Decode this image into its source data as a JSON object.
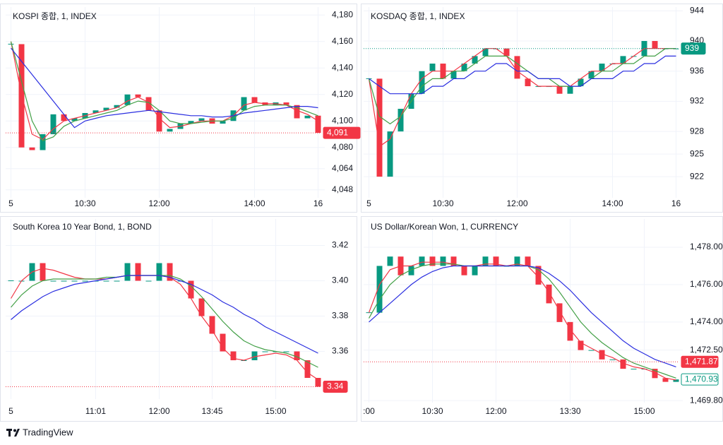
{
  "chart_data": [
    {
      "type": "candlestick",
      "title": "KOSPI 종합, 1, INDEX",
      "categories": [
        "5",
        null,
        null,
        null,
        null,
        null,
        null,
        "10:30",
        null,
        null,
        null,
        null,
        null,
        null,
        "12:00",
        null,
        null,
        null,
        null,
        null,
        null,
        null,
        null,
        "14:00",
        null,
        null,
        null,
        null,
        null,
        "16"
      ],
      "values": [
        4158,
        4080,
        4078,
        4090,
        4105,
        4100,
        4102,
        4106,
        4108,
        4110,
        4112,
        4120,
        4118,
        4108,
        4092,
        4094,
        4098,
        4100,
        4102,
        4098,
        4100,
        4108,
        4118,
        4114,
        4112,
        4114,
        4112,
        4102,
        4104,
        4091
      ],
      "up_color": "#089981",
      "down_color": "#f23645",
      "series": [
        {
          "color": "#f23645",
          "values": [
            4160,
            4120,
            4090,
            4086,
            4094,
            4100,
            4102,
            4104,
            4106,
            4108,
            4110,
            4115,
            4118,
            4114,
            4102,
            4095,
            4096,
            4098,
            4100,
            4100,
            4100,
            4104,
            4112,
            4114,
            4113,
            4113,
            4112,
            4108,
            4105,
            4100
          ]
        },
        {
          "color": "#43a047",
          "values": [
            4160,
            4130,
            4100,
            4085,
            4088,
            4096,
            4100,
            4102,
            4104,
            4106,
            4108,
            4112,
            4115,
            4114,
            4108,
            4100,
            4098,
            4098,
            4099,
            4100,
            4100,
            4102,
            4108,
            4111,
            4112,
            4112,
            4112,
            4110,
            4107,
            4104
          ]
        },
        {
          "color": "#2a2ee0",
          "values": [
            4155,
            4145,
            4135,
            4125,
            4115,
            4105,
            4095,
            4100,
            4102,
            4104,
            4105,
            4106,
            4107,
            4108,
            4107,
            4106,
            4105,
            4104,
            4104,
            4103,
            4103,
            4104,
            4106,
            4107,
            4108,
            4109,
            4110,
            4111,
            4111,
            4110
          ]
        }
      ],
      "ylim": [
        4042,
        4186
      ],
      "yticks": [
        {
          "value": 4048,
          "label": "4,048"
        },
        {
          "value": 4064,
          "label": "4,064"
        },
        {
          "value": 4080,
          "label": "4,080"
        },
        {
          "value": 4100,
          "label": "4,100"
        },
        {
          "value": 4120,
          "label": "4,120"
        },
        {
          "value": 4140,
          "label": "4,140"
        },
        {
          "value": 4160,
          "label": "4,160"
        },
        {
          "value": 4180,
          "label": "4,180"
        }
      ],
      "price_labels": [
        {
          "value": 4091,
          "label": "4,091",
          "color": "#f23645",
          "style": "filled"
        }
      ],
      "grid": true
    },
    {
      "type": "candlestick",
      "title": "KOSDAQ 종합, 1, INDEX",
      "categories": [
        "5",
        null,
        null,
        null,
        null,
        null,
        null,
        "10:30",
        null,
        null,
        null,
        null,
        null,
        null,
        "12:00",
        null,
        null,
        null,
        null,
        null,
        null,
        null,
        null,
        "14:00",
        null,
        null,
        null,
        null,
        null,
        "16"
      ],
      "values": [
        935,
        922,
        928,
        931,
        933,
        936,
        937,
        935,
        936,
        937,
        938,
        939,
        939,
        938,
        935,
        934,
        934,
        934,
        933,
        934,
        935,
        936,
        937,
        937,
        938,
        938,
        940,
        939,
        939,
        939
      ],
      "up_color": "#089981",
      "down_color": "#f23645",
      "series": [
        {
          "color": "#f23645",
          "values": [
            935,
            926,
            927,
            930,
            933,
            935,
            936,
            936,
            936,
            937,
            938,
            939,
            939,
            938,
            936,
            935,
            934,
            934,
            934,
            934,
            935,
            936,
            936,
            937,
            937,
            938,
            939,
            939,
            939,
            939
          ]
        },
        {
          "color": "#43a047",
          "values": [
            935,
            930,
            929,
            930,
            932,
            934,
            935,
            935,
            936,
            936,
            937,
            938,
            938,
            938,
            937,
            936,
            935,
            935,
            934,
            934,
            934,
            935,
            936,
            936,
            937,
            937,
            938,
            938,
            939,
            939
          ]
        },
        {
          "color": "#2a2ee0",
          "values": [
            935,
            934,
            933,
            933,
            933,
            933,
            934,
            934,
            935,
            935,
            936,
            936,
            937,
            937,
            936,
            936,
            935,
            935,
            935,
            934,
            934,
            935,
            935,
            935,
            936,
            936,
            937,
            937,
            938,
            938
          ]
        }
      ],
      "ylim": [
        919.2,
        944.5
      ],
      "yticks": [
        922,
        925,
        928,
        932,
        936,
        940,
        944
      ],
      "price_labels": [
        {
          "value": 939,
          "color": "#089981",
          "style": "filled"
        }
      ],
      "grid": true
    },
    {
      "type": "candlestick",
      "title": "South Korea 10 Year Bond, 1, BOND",
      "categories": [
        "5",
        null,
        null,
        null,
        null,
        null,
        null,
        null,
        "11:01",
        null,
        null,
        null,
        null,
        null,
        "12:00",
        null,
        null,
        null,
        null,
        "13:45",
        null,
        null,
        null,
        null,
        null,
        "15:00",
        null,
        null,
        null,
        null
      ],
      "values": [
        3.4,
        3.4,
        3.41,
        3.4,
        3.4,
        3.4,
        3.4,
        3.4,
        3.4,
        3.4,
        3.4,
        3.41,
        3.4,
        3.4,
        3.41,
        3.4,
        3.4,
        3.39,
        3.38,
        3.37,
        3.36,
        3.355,
        3.355,
        3.36,
        3.36,
        3.36,
        3.36,
        3.355,
        3.345,
        3.34
      ],
      "up_color": "#089981",
      "down_color": "#f23645",
      "series": [
        {
          "color": "#f23645",
          "values": [
            3.39,
            3.4,
            3.405,
            3.407,
            3.406,
            3.404,
            3.402,
            3.401,
            3.401,
            3.401,
            3.402,
            3.403,
            3.403,
            3.403,
            3.403,
            3.402,
            3.398,
            3.39,
            3.38,
            3.372,
            3.362,
            3.356,
            3.355,
            3.357,
            3.358,
            3.359,
            3.358,
            3.355,
            3.348,
            3.344
          ]
        },
        {
          "color": "#43a047",
          "values": [
            3.385,
            3.392,
            3.397,
            3.4,
            3.401,
            3.401,
            3.401,
            3.401,
            3.401,
            3.402,
            3.402,
            3.403,
            3.403,
            3.403,
            3.403,
            3.403,
            3.401,
            3.397,
            3.391,
            3.384,
            3.377,
            3.371,
            3.366,
            3.363,
            3.361,
            3.36,
            3.359,
            3.357,
            3.354,
            3.351
          ]
        },
        {
          "color": "#2a2ee0",
          "values": [
            3.378,
            3.383,
            3.387,
            3.391,
            3.394,
            3.396,
            3.398,
            3.399,
            3.4,
            3.401,
            3.402,
            3.403,
            3.403,
            3.403,
            3.403,
            3.402,
            3.4,
            3.398,
            3.395,
            3.392,
            3.388,
            3.385,
            3.381,
            3.378,
            3.374,
            3.371,
            3.368,
            3.365,
            3.362,
            3.359
          ]
        }
      ],
      "ylim": [
        3.333,
        3.435
      ],
      "yticks": [
        3.36,
        3.38,
        {
          "value": 3.4,
          "label": "3.40"
        },
        3.42
      ],
      "price_labels": [
        {
          "value": 3.34,
          "color": "#f23645",
          "style": "filled"
        }
      ],
      "grid": true
    },
    {
      "type": "candlestick",
      "title": "US Dollar/Korean Won, 1, CURRENCY",
      "categories": [
        ":00",
        null,
        null,
        null,
        null,
        null,
        "10:30",
        null,
        null,
        null,
        null,
        null,
        "12:00",
        null,
        null,
        null,
        null,
        null,
        null,
        "13:30",
        null,
        null,
        null,
        null,
        null,
        null,
        "15:00",
        null,
        null,
        null
      ],
      "values": [
        1474.5,
        1477,
        1477.5,
        1476.5,
        1477,
        1477.5,
        1477,
        1477.5,
        1477,
        1476.5,
        1477,
        1477.5,
        1477,
        1477,
        1477.5,
        1477,
        1476,
        1475,
        1474,
        1473,
        1472.5,
        1472.5,
        1472,
        1472,
        1471.5,
        1471.5,
        1471.5,
        1471,
        1470.8,
        1470.93
      ],
      "up_color": "#089981",
      "down_color": "#f23645",
      "series": [
        {
          "color": "#f23645",
          "values": [
            1474.5,
            1476,
            1476.8,
            1477,
            1477,
            1477.2,
            1477.2,
            1477.2,
            1477.1,
            1477,
            1477,
            1477.1,
            1477.1,
            1477,
            1477.1,
            1477,
            1476.4,
            1475.6,
            1474.6,
            1473.6,
            1472.9,
            1472.6,
            1472.3,
            1472.1,
            1471.8,
            1471.6,
            1471.5,
            1471.3,
            1471,
            1470.9
          ]
        },
        {
          "color": "#43a047",
          "values": [
            1474.2,
            1475.2,
            1476,
            1476.5,
            1476.8,
            1477,
            1477.1,
            1477.1,
            1477.1,
            1477,
            1477,
            1477,
            1477,
            1477,
            1477,
            1477,
            1476.8,
            1476.3,
            1475.6,
            1474.8,
            1474,
            1473.4,
            1472.9,
            1472.5,
            1472.1,
            1471.8,
            1471.6,
            1471.4,
            1471.2,
            1471
          ]
        },
        {
          "color": "#2a2ee0",
          "values": [
            1474,
            1474.5,
            1475,
            1475.5,
            1476,
            1476.4,
            1476.7,
            1476.9,
            1477,
            1477,
            1477,
            1477,
            1477,
            1477,
            1477,
            1477,
            1476.9,
            1476.6,
            1476.2,
            1475.7,
            1475.1,
            1474.5,
            1474,
            1473.5,
            1473,
            1472.6,
            1472.3,
            1472,
            1471.8,
            1471.6
          ]
        }
      ],
      "ylim": [
        1469.69,
        1479.51
      ],
      "yticks": [
        {
          "value": 1469.8,
          "label": "1,469.80"
        },
        {
          "value": 1472.5,
          "label": "1,472.50"
        },
        {
          "value": 1474,
          "label": "1,474.00"
        },
        {
          "value": 1476,
          "label": "1,476.00"
        },
        {
          "value": 1478,
          "label": "1,478.00"
        }
      ],
      "price_labels": [
        {
          "value": 1471.87,
          "label": "1,471.87",
          "color": "#f23645",
          "style": "filled"
        },
        {
          "value": 1470.93,
          "label": "1,470.93",
          "color": "#089981",
          "style": "outline"
        }
      ],
      "grid": true
    }
  ],
  "brand": "TradingView"
}
